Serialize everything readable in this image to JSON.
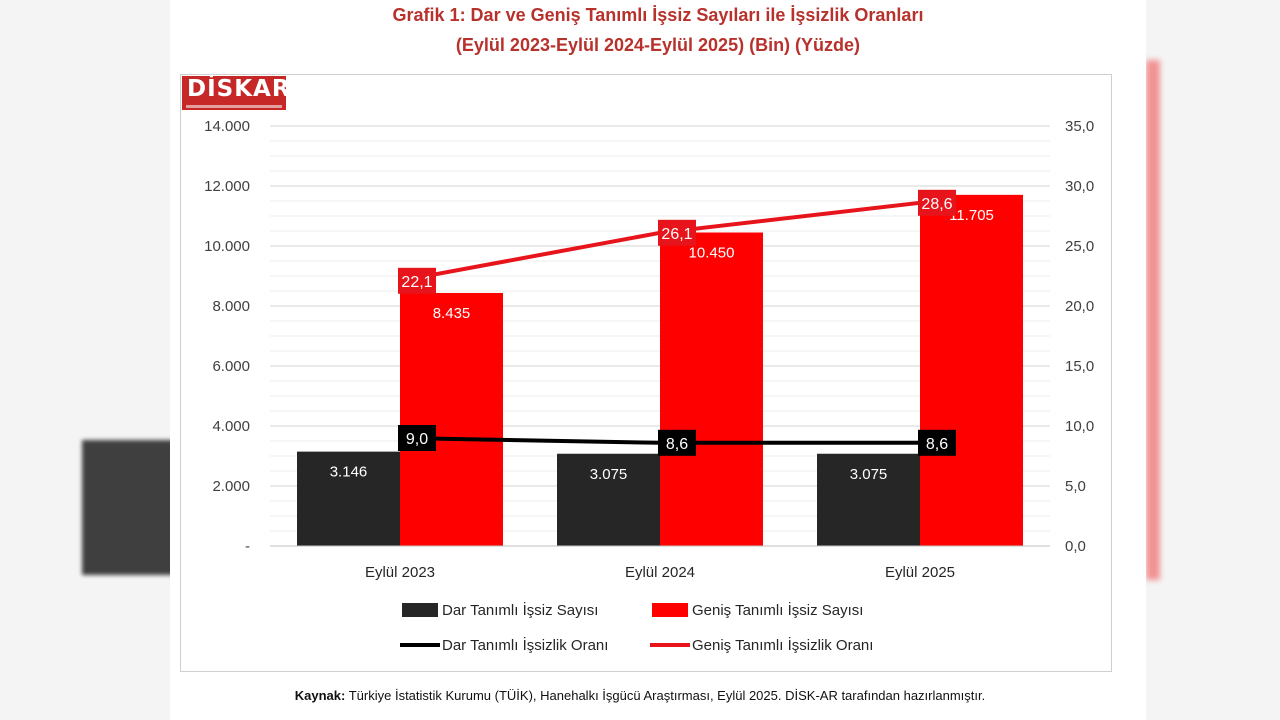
{
  "title_line1": "Grafik 1: Dar ve Geniş Tanımlı İşsiz Sayıları ile İşsizlik Oranları",
  "title_line2": "(Eylül 2023-Eylül 2024-Eylül 2025) (Bin) (Yüzde)",
  "logo": "DİSKAR",
  "caption_label": "Kaynak:",
  "caption_text": " Türkiye İstatistik Kurumu (TÜİK), Hanehalkı İşgücü Araştırması, Eylül 2025. DİSK-AR tarafından hazırlanmıştır.",
  "colors": {
    "dark": "#262626",
    "red": "#ff0000",
    "line_red": "#e8141b",
    "line_dark": "#000000"
  },
  "chart_data": {
    "type": "bar+line",
    "categories": [
      "Eylül 2023",
      "Eylül 2024",
      "Eylül 2025"
    ],
    "bar_series": [
      {
        "name": "Dar Tanımlı İşsiz Sayısı",
        "values": [
          3146,
          3075,
          3075
        ],
        "labels": [
          "3.146",
          "3.075",
          "3.075"
        ]
      },
      {
        "name": "Geniş Tanımlı İşsiz Sayısı",
        "values": [
          8435,
          10450,
          11705
        ],
        "labels": [
          "8.435",
          "10.450",
          "11.705"
        ]
      }
    ],
    "line_series": [
      {
        "name": "Dar Tanımlı İşsizlik Oranı",
        "values": [
          9.0,
          8.6,
          8.6
        ],
        "labels": [
          "9,0",
          "8,6",
          "8,6"
        ]
      },
      {
        "name": "Geniş Tanımlı İşsizlik Oranı",
        "values": [
          22.1,
          26.1,
          28.6
        ],
        "labels": [
          "22,1",
          "26,1",
          "28,6"
        ]
      }
    ],
    "y_left": {
      "min": 0,
      "max": 14000,
      "ticks": [
        "-",
        "2.000",
        "4.000",
        "6.000",
        "8.000",
        "10.000",
        "12.000",
        "14.000"
      ]
    },
    "y_right": {
      "min": 0,
      "max": 35,
      "ticks": [
        "0,0",
        "5,0",
        "10,0",
        "15,0",
        "20,0",
        "25,0",
        "30,0",
        "35,0"
      ]
    },
    "grid": true,
    "legend_position": "bottom"
  }
}
